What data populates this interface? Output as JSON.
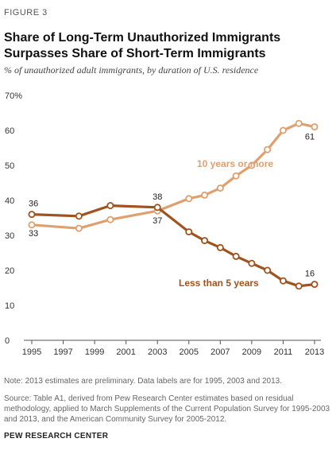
{
  "header": {
    "figure_label": "FIGURE 3",
    "title": "Share of Long-Term Unauthorized Immigrants Surpasses Share of Short-Term Immigrants",
    "subtitle": "% of unauthorized adult immigrants, by duration of U.S. residence"
  },
  "footer": {
    "note": "Note: 2013 estimates are preliminary. Data labels are for 1995, 2003 and 2013.",
    "source": "Source: Table A1, derived from Pew Research Center estimates based on residual methodology, applied to March Supplements of the Current Population Survey for 1995-2003 and 2013, and the American Community Survey for 2005-2012.",
    "organization": "PEW RESEARCH CENTER"
  },
  "chart_data": {
    "type": "line",
    "title": "Share of Long-Term Unauthorized Immigrants Surpasses Share of Short-Term Immigrants",
    "xlabel": "",
    "ylabel": "% of unauthorized adult immigrants, by duration of U.S. residence",
    "xlim": [
      1995,
      2013
    ],
    "ylim": [
      0,
      70
    ],
    "x_ticks": [
      "1995",
      "1997",
      "1999",
      "2001",
      "2003",
      "2005",
      "2007",
      "2009",
      "2011",
      "2013"
    ],
    "y_ticks": [
      "0",
      "10",
      "20",
      "30",
      "40",
      "50",
      "60",
      "70%"
    ],
    "grid": false,
    "series": [
      {
        "name": "10 years or more",
        "color": "#dfa06f",
        "x": [
          1995,
          1998,
          2000,
          2003,
          2005,
          2006,
          2007,
          2008,
          2009,
          2010,
          2011,
          2012,
          2013
        ],
        "values": [
          33,
          32,
          34.5,
          37,
          40.5,
          41.5,
          43.5,
          47,
          50,
          54.5,
          60,
          62,
          61
        ]
      },
      {
        "name": "Less than 5 years",
        "color": "#a0531f",
        "x": [
          1995,
          1998,
          2000,
          2003,
          2005,
          2006,
          2007,
          2008,
          2009,
          2010,
          2011,
          2012,
          2013
        ],
        "values": [
          36,
          35.5,
          38.5,
          38,
          31,
          28.5,
          26.5,
          24,
          22,
          20,
          17,
          15.5,
          16
        ]
      }
    ],
    "data_labels": [
      {
        "series": "Less than 5 years",
        "x": 1995,
        "text": "36"
      },
      {
        "series": "10 years or more",
        "x": 1995,
        "text": "33"
      },
      {
        "series": "Less than 5 years",
        "x": 2003,
        "text": "38"
      },
      {
        "series": "10 years or more",
        "x": 2003,
        "text": "37"
      },
      {
        "series": "10 years or more",
        "x": 2013,
        "text": "61"
      },
      {
        "series": "Less than 5 years",
        "x": 2013,
        "text": "16"
      }
    ]
  }
}
